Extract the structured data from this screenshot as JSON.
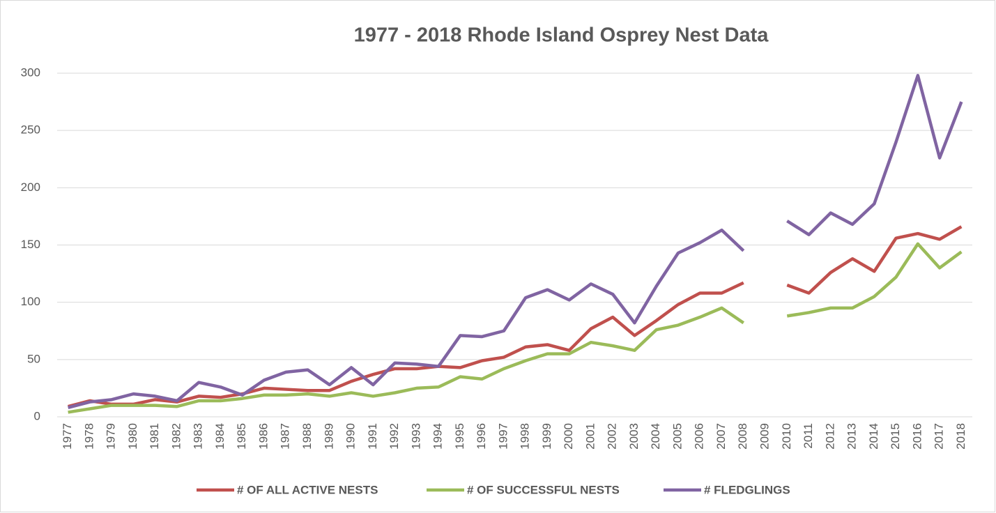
{
  "chart_data": {
    "type": "line",
    "title": "1977 - 2018 Rhode Island Osprey Nest Data",
    "categories": [
      "1977",
      "1978",
      "1979",
      "1980",
      "1981",
      "1982",
      "1983",
      "1984",
      "1985",
      "1986",
      "1987",
      "1988",
      "1989",
      "1990",
      "1991",
      "1992",
      "1993",
      "1994",
      "1995",
      "1996",
      "1997",
      "1998",
      "1999",
      "2000",
      "2001",
      "2002",
      "2003",
      "2004",
      "2005",
      "2006",
      "2007",
      "2008",
      "2009",
      "2010",
      "2011",
      "2012",
      "2013",
      "2014",
      "2015",
      "2016",
      "2017",
      "2018"
    ],
    "series": [
      {
        "name": "# OF ALL ACTIVE  NESTS",
        "color": "#c0504d",
        "values": [
          9,
          14,
          11,
          11,
          15,
          13,
          18,
          17,
          20,
          25,
          24,
          23,
          23,
          31,
          37,
          42,
          42,
          44,
          43,
          49,
          52,
          61,
          63,
          58,
          77,
          87,
          71,
          84,
          98,
          108,
          108,
          117,
          null,
          115,
          108,
          126,
          138,
          127,
          156,
          160,
          155,
          166
        ]
      },
      {
        "name": "# OF SUCCESSFUL NESTS",
        "color": "#9bbb59",
        "values": [
          4,
          7,
          10,
          10,
          10,
          9,
          14,
          14,
          16,
          19,
          19,
          20,
          18,
          21,
          18,
          21,
          25,
          26,
          35,
          33,
          42,
          49,
          55,
          55,
          65,
          62,
          58,
          76,
          80,
          87,
          95,
          82,
          null,
          88,
          91,
          95,
          95,
          105,
          122,
          151,
          130,
          144
        ]
      },
      {
        "name": "# FLEDGLINGS",
        "color": "#8064a2",
        "values": [
          8,
          13,
          15,
          20,
          18,
          14,
          30,
          26,
          19,
          32,
          39,
          41,
          28,
          43,
          28,
          47,
          46,
          44,
          71,
          70,
          75,
          104,
          111,
          102,
          116,
          107,
          82,
          114,
          143,
          152,
          163,
          145,
          null,
          171,
          159,
          178,
          168,
          186,
          240,
          298,
          226,
          275
        ]
      }
    ],
    "ylim": [
      0,
      300
    ],
    "yticks": [
      0,
      50,
      100,
      150,
      200,
      250,
      300
    ],
    "grid": true
  }
}
